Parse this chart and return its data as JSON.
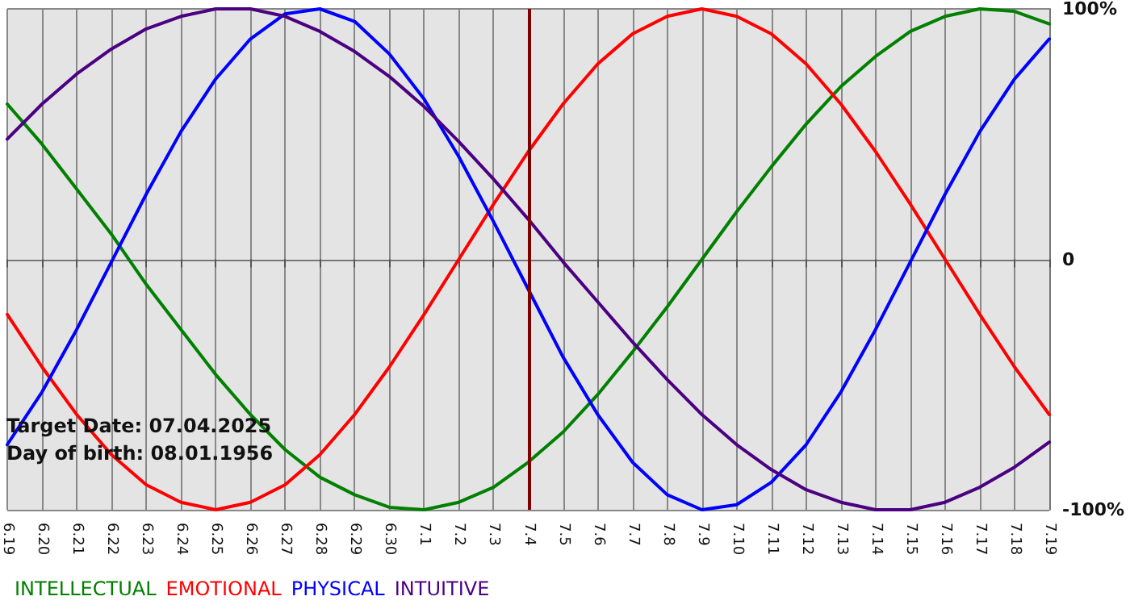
{
  "chart_data": {
    "type": "line",
    "categories": [
      "6.19",
      "6.20",
      "6.21",
      "6.22",
      "6.23",
      "6.24",
      "6.25",
      "6.26",
      "6.27",
      "6.28",
      "6.29",
      "6.30",
      "7.1",
      "7.2",
      "7.3",
      "7.4",
      "7.5",
      "7.6",
      "7.7",
      "7.8",
      "7.9",
      "7.10",
      "7.11",
      "7.12",
      "7.13",
      "7.14",
      "7.15",
      "7.16",
      "7.17",
      "7.18",
      "7.19"
    ],
    "series": [
      {
        "name": "INTELLECTUAL",
        "color": "#008000",
        "values": [
          62,
          46,
          28,
          10,
          -10,
          -28,
          -46,
          -62,
          -76,
          -87,
          -94,
          -99,
          -100,
          -97,
          -91,
          -81,
          -69,
          -54,
          -37,
          -19,
          0,
          19,
          37,
          54,
          69,
          81,
          91,
          97,
          100,
          99,
          94
        ]
      },
      {
        "name": "EMOTIONAL",
        "color": "#ff0000",
        "values": [
          -22,
          -43,
          -62,
          -78,
          -90,
          -97,
          -100,
          -97,
          -90,
          -78,
          -62,
          -43,
          -22,
          0,
          22,
          43,
          62,
          78,
          90,
          97,
          100,
          97,
          90,
          78,
          62,
          43,
          22,
          0,
          -22,
          -43,
          -62
        ]
      },
      {
        "name": "PHYSICAL",
        "color": "#0000ff",
        "values": [
          -74,
          -53,
          -28,
          -1,
          26,
          51,
          72,
          88,
          98,
          100,
          95,
          82,
          64,
          41,
          15,
          -12,
          -39,
          -62,
          -81,
          -94,
          -100,
          -98,
          -89,
          -74,
          -53,
          -28,
          -1,
          26,
          51,
          72,
          88
        ]
      },
      {
        "name": "INTUITIVE",
        "color": "#4b0082",
        "values": [
          48,
          62,
          74,
          84,
          92,
          97,
          100,
          100,
          97,
          91,
          83,
          73,
          61,
          47,
          32,
          16,
          -1,
          -17,
          -33,
          -48,
          -62,
          -74,
          -84,
          -92,
          -97,
          -100,
          -100,
          -97,
          -91,
          -83,
          -73
        ]
      }
    ],
    "ylim": [
      -100,
      100
    ],
    "yticks": [
      {
        "value": 100,
        "label": "100%"
      },
      0,
      {
        "value": -100,
        "label": "-100%"
      }
    ],
    "grid": true,
    "legend": "bottom left",
    "marker": "none",
    "ref_lines": [
      {
        "axis": "x",
        "value": "7.4",
        "color": "#800000"
      }
    ],
    "annotations": [
      "Target Date: 07.04.2025",
      "Day of birth: 08.01.1956"
    ]
  }
}
